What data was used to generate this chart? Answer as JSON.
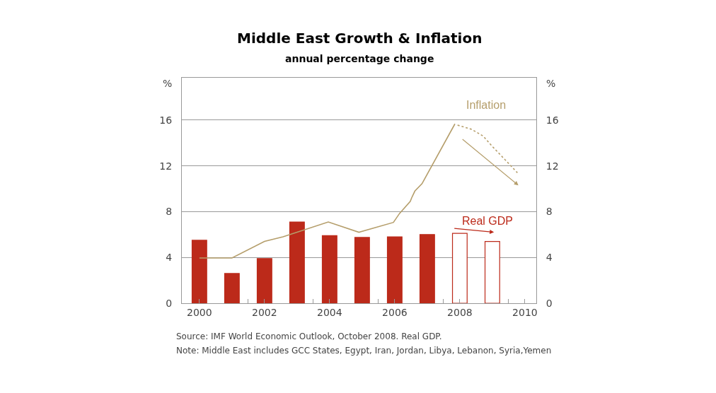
{
  "chart_data": {
    "type": "bar",
    "title": "Middle East Growth & Inflation",
    "subtitle": "annual percentage change",
    "ylabel": "%",
    "y2label": "%",
    "x": [
      2000,
      2001,
      2002,
      2003,
      2004,
      2005,
      2006,
      2007,
      2008,
      2009
    ],
    "series": [
      {
        "name": "Real GDP",
        "color": "#bc2a1a",
        "colors": [
          "#bc2a1a",
          "#bc2a1a",
          "#bc2a1a",
          "#bc2a1a",
          "#bc2a1a",
          "#bc2a1a",
          "#bc2a1a",
          "#bc2a1a",
          "#ffffff",
          "#ffffff"
        ],
        "values": [
          5.5,
          2.6,
          3.9,
          7.1,
          5.9,
          5.75,
          5.8,
          6.0,
          6.1,
          5.4
        ]
      },
      {
        "name": "Inflation",
        "type": "line",
        "color": "#b59e6b",
        "line_style": "solid",
        "x": [
          2000,
          2001,
          2002,
          2002.57,
          2003.96,
          2004.9,
          2005.96,
          2006.15,
          2006.48,
          2006.52,
          2006.62,
          2006.84,
          2007.85
        ],
        "values": [
          3.95,
          3.95,
          5.4,
          5.8,
          7.1,
          6.2,
          7.06,
          7.85,
          8.9,
          9.2,
          9.8,
          10.45,
          15.67
        ]
      },
      {
        "type": "line",
        "color": "#b59e6b",
        "line_style": "dotted",
        "x": [
          2007.93,
          2008.36,
          2008.72,
          2009.0,
          2009.37,
          2009.77
        ],
        "values": [
          15.56,
          15.2,
          14.6,
          13.7,
          12.6,
          11.4
        ]
      }
    ],
    "xlim": [
      1999.46,
      2010.35
    ],
    "xticks": [
      2000,
      {
        "value": 2001.5,
        "label": null
      },
      2002,
      {
        "value": 2003.5,
        "label": null
      },
      2004,
      {
        "value": 2005.5,
        "label": null
      },
      2006,
      {
        "value": 2007.5,
        "label": null
      },
      2008,
      {
        "value": 2009.5,
        "label": null
      },
      2010
    ],
    "ylim": [
      0,
      19.7
    ],
    "yticks": [
      0,
      4,
      8,
      12,
      16
    ],
    "y2lim": [
      0,
      19.7
    ],
    "y2ticks": [
      0,
      4,
      8,
      12,
      16
    ],
    "grid": "y",
    "annotations": [
      "Source: IMF World Economic Outlook, October 2008. Real GDP.",
      "Note: Middle East includes GCC States, Egypt, Iran, Jordan, Libya, Lebanon, Syria,Yemen"
    ]
  }
}
